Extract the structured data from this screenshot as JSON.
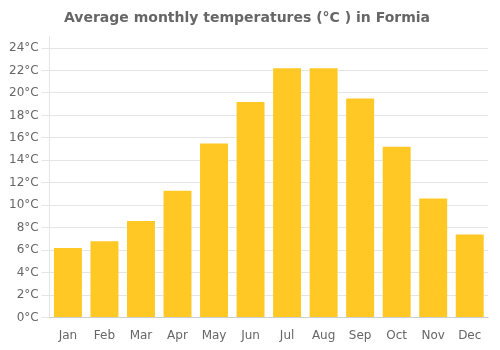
{
  "chart_data": {
    "type": "bar",
    "title": "Average monthly temperatures (°C ) in Formia",
    "categories": [
      "Jan",
      "Feb",
      "Mar",
      "Apr",
      "May",
      "Jun",
      "Jul",
      "Aug",
      "Sep",
      "Oct",
      "Nov",
      "Dec"
    ],
    "values": [
      6.2,
      6.8,
      8.6,
      11.3,
      15.5,
      19.2,
      22.2,
      22.2,
      19.5,
      15.2,
      10.6,
      7.4
    ],
    "color": "#FFC825",
    "ylim": [
      0,
      25
    ],
    "yticks": [
      {
        "value": 0,
        "label": "0°C"
      },
      {
        "value": 2,
        "label": "2°C"
      },
      {
        "value": 4,
        "label": "4°C"
      },
      {
        "value": 6,
        "label": "6°C"
      },
      {
        "value": 8,
        "label": "8°C"
      },
      {
        "value": 10,
        "label": "10°C"
      },
      {
        "value": 12,
        "label": "12°C"
      },
      {
        "value": 14,
        "label": "14°C"
      },
      {
        "value": 16,
        "label": "16°C"
      },
      {
        "value": 18,
        "label": "18°C"
      },
      {
        "value": 20,
        "label": "20°C"
      },
      {
        "value": 22,
        "label": "22°C"
      },
      {
        "value": 24,
        "label": "24°C"
      }
    ],
    "grid": true
  }
}
